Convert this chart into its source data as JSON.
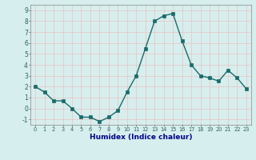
{
  "x": [
    0,
    1,
    2,
    3,
    4,
    5,
    6,
    7,
    8,
    9,
    10,
    11,
    12,
    13,
    14,
    15,
    16,
    17,
    18,
    19,
    20,
    21,
    22,
    23
  ],
  "y": [
    2.0,
    1.5,
    0.7,
    0.7,
    0.0,
    -0.8,
    -0.8,
    -1.2,
    -0.8,
    -0.2,
    1.5,
    3.0,
    5.5,
    8.0,
    8.5,
    8.7,
    6.2,
    4.0,
    3.0,
    2.8,
    2.5,
    3.5,
    2.8,
    1.8
  ],
  "xlabel": "Humidex (Indice chaleur)",
  "xlim": [
    -0.5,
    23.5
  ],
  "ylim": [
    -1.5,
    9.5
  ],
  "yticks": [
    -1,
    0,
    1,
    2,
    3,
    4,
    5,
    6,
    7,
    8,
    9
  ],
  "xticks": [
    0,
    1,
    2,
    3,
    4,
    5,
    6,
    7,
    8,
    9,
    10,
    11,
    12,
    13,
    14,
    15,
    16,
    17,
    18,
    19,
    20,
    21,
    22,
    23
  ],
  "line_color": "#1a6b6b",
  "marker_color": "#1a6b6b",
  "bg_color": "#d6eeed",
  "plot_bg_color": "#d6eeed",
  "grid_color": "#e8c8c8",
  "xlabel_color": "#00008b",
  "tick_label_color": "#2f6060"
}
